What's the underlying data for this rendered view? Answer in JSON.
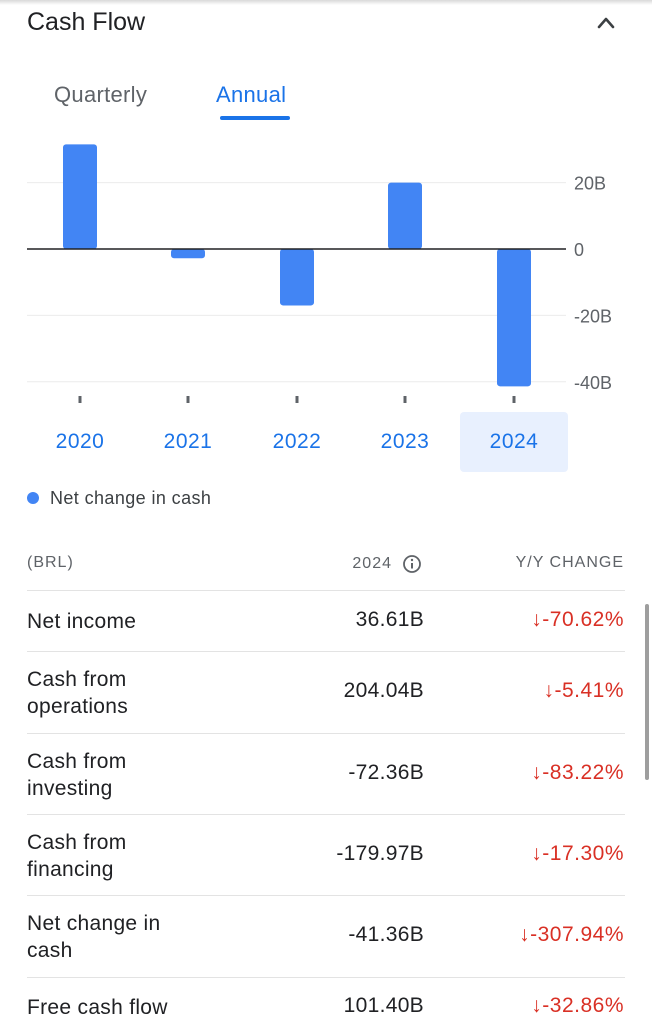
{
  "header": {
    "title": "Cash Flow",
    "collapse_icon": "chevron-up-icon"
  },
  "tabs": [
    {
      "label": "Quarterly",
      "selected": false
    },
    {
      "label": "Annual",
      "selected": true
    }
  ],
  "chart_data": {
    "type": "bar",
    "categories": [
      "2020",
      "2021",
      "2022",
      "2023",
      "2024"
    ],
    "series": [
      {
        "name": "Net change in cash",
        "values": [
          31.5,
          -2.8,
          -17.0,
          20.0,
          -41.36
        ],
        "color": "#4285f4"
      }
    ],
    "unit": "B",
    "ylim": [
      -45,
      35
    ],
    "yticks": [
      {
        "value": 20,
        "label": "20B"
      },
      {
        "value": 0,
        "label": "0"
      },
      {
        "value": -20,
        "label": "-20B"
      },
      {
        "value": -40,
        "label": "-40B"
      }
    ],
    "selected_category": "2024",
    "grid": true,
    "legend_position": "bottom-left"
  },
  "table": {
    "headers": {
      "label": "(BRL)",
      "period": "2024",
      "change": "Y/Y CHANGE"
    },
    "info_icon": "info-icon",
    "rows": [
      {
        "name_lines": [
          "Net income"
        ],
        "value": "36.61B",
        "change": "-70.62%"
      },
      {
        "name_lines": [
          "Cash from",
          "operations"
        ],
        "value": "204.04B",
        "change": "-5.41%"
      },
      {
        "name_lines": [
          "Cash from",
          "investing"
        ],
        "value": "-72.36B",
        "change": "-83.22%"
      },
      {
        "name_lines": [
          "Cash from",
          "financing"
        ],
        "value": "-179.97B",
        "change": "-17.30%"
      },
      {
        "name_lines": [
          "Net change in",
          "cash"
        ],
        "value": "-41.36B",
        "change": "-307.94%"
      },
      {
        "name_lines": [
          "Free cash flow"
        ],
        "value": "101.40B",
        "change": "-32.86%"
      }
    ],
    "change_arrow": "↓",
    "change_color": "#d93025"
  }
}
